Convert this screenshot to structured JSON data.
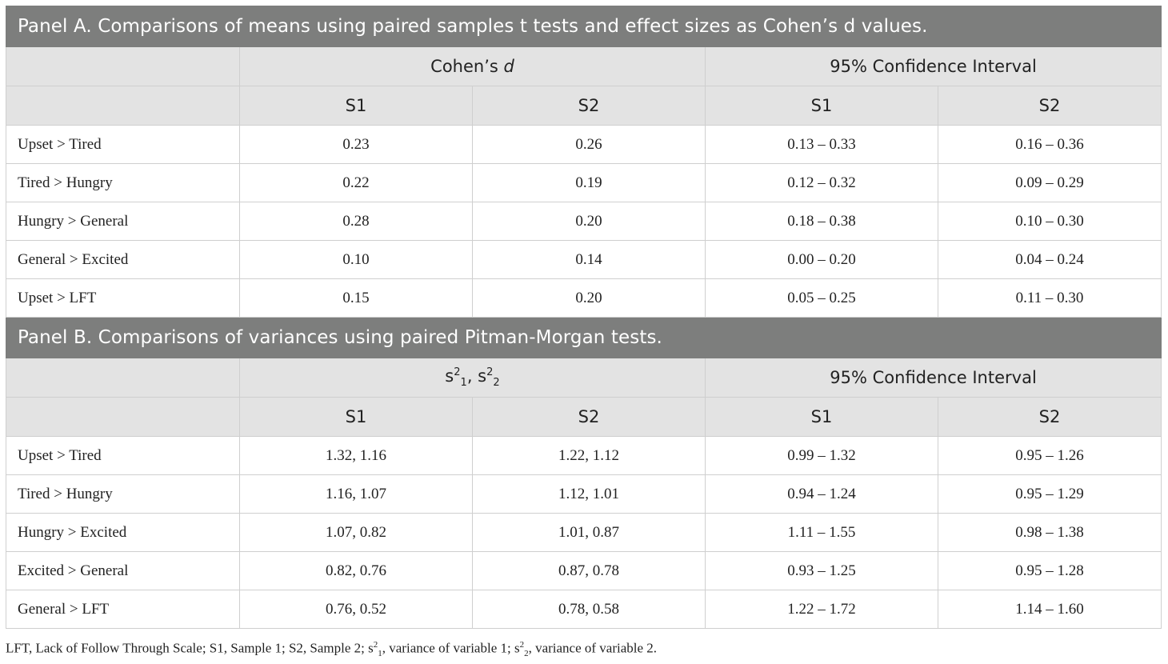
{
  "panel_a": {
    "title": "Panel A. Comparisons of means using paired samples t tests and effect sizes as Cohen’s d values.",
    "group1_prefix": "Cohen’s ",
    "group1_italic": "d",
    "group2": "95% Confidence Interval",
    "sub_headers": [
      "S1",
      "S2",
      "S1",
      "S2"
    ],
    "rows": [
      {
        "label": "Upset > Tired",
        "cells": [
          "0.23",
          "0.26",
          "0.13 – 0.33",
          "0.16 – 0.36"
        ]
      },
      {
        "label": "Tired > Hungry",
        "cells": [
          "0.22",
          "0.19",
          "0.12 – 0.32",
          "0.09 – 0.29"
        ]
      },
      {
        "label": "Hungry > General",
        "cells": [
          "0.28",
          "0.20",
          "0.18 – 0.38",
          "0.10 – 0.30"
        ]
      },
      {
        "label": "General > Excited",
        "cells": [
          "0.10",
          "0.14",
          "0.00 – 0.20",
          "0.04 – 0.24"
        ]
      },
      {
        "label": "Upset > LFT",
        "cells": [
          "0.15",
          "0.20",
          "0.05 – 0.25",
          "0.11 – 0.30"
        ]
      }
    ]
  },
  "panel_b": {
    "title": "Panel B. Comparisons of variances using paired Pitman-Morgan tests.",
    "group1": {
      "s": "s",
      "sup": "2",
      "sub1": "1",
      "sep": ", ",
      "sub2": "2"
    },
    "group2": "95% Confidence Interval",
    "sub_headers": [
      "S1",
      "S2",
      "S1",
      "S2"
    ],
    "rows": [
      {
        "label": "Upset > Tired",
        "cells": [
          "1.32, 1.16",
          "1.22, 1.12",
          "0.99 – 1.32",
          "0.95 – 1.26"
        ]
      },
      {
        "label": "Tired > Hungry",
        "cells": [
          "1.16, 1.07",
          "1.12, 1.01",
          "0.94 – 1.24",
          "0.95 – 1.29"
        ]
      },
      {
        "label": "Hungry > Excited",
        "cells": [
          "1.07, 0.82",
          "1.01, 0.87",
          "1.11 – 1.55",
          "0.98 – 1.38"
        ]
      },
      {
        "label": "Excited > General",
        "cells": [
          "0.82, 0.76",
          "0.87, 0.78",
          "0.93 – 1.25",
          "0.95 – 1.28"
        ]
      },
      {
        "label": "General > LFT",
        "cells": [
          "0.76, 0.52",
          "0.78, 0.58",
          "1.22 – 1.72",
          "1.14 – 1.60"
        ]
      }
    ]
  },
  "footnote": {
    "part1": "LFT, Lack of Follow Through Scale; S1, Sample 1; S2, Sample 2; s",
    "sup1": "2",
    "sub1": "1",
    "part2": ", variance of variable 1; s",
    "sup2": "2",
    "sub2": "2",
    "part3": ", variance of variable 2."
  },
  "colors": {
    "panel_header_bg": "#7d7e7d",
    "column_header_bg": "#e3e3e3",
    "border": "#cfcfcf"
  }
}
